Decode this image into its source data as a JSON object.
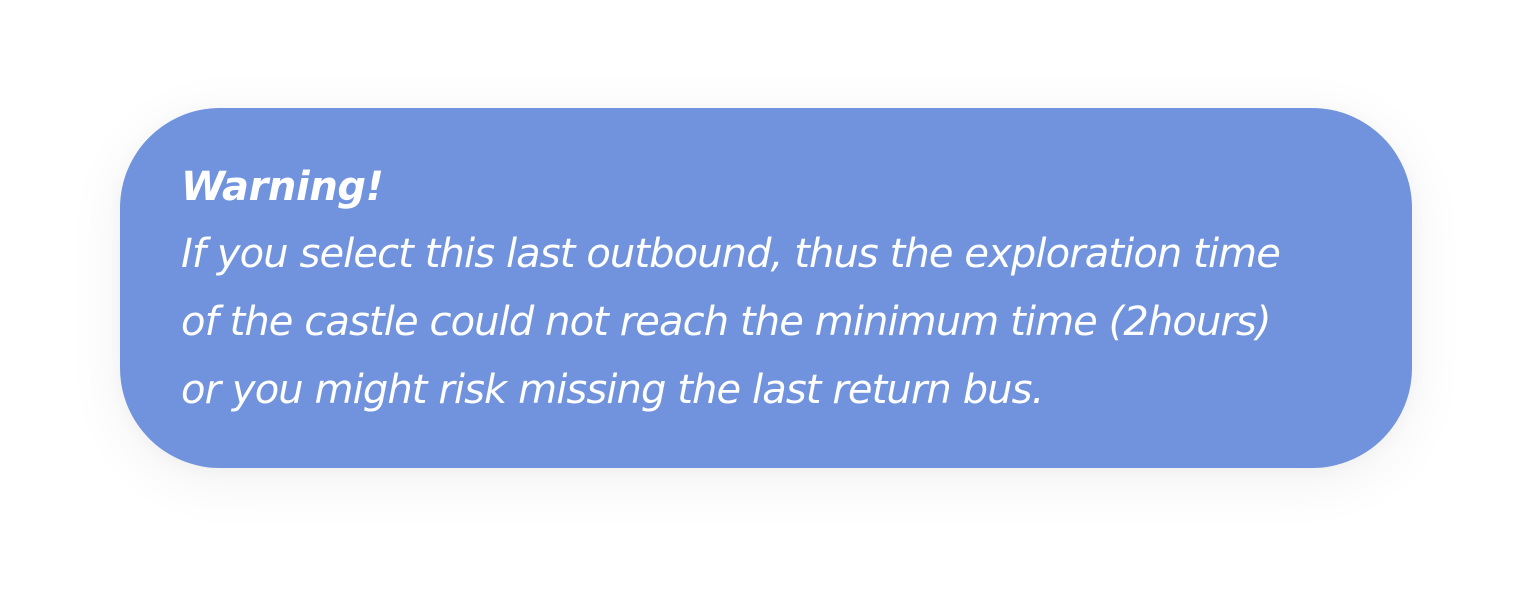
{
  "warning": {
    "title": "Warning!",
    "lines": [
      "If you select this last outbound, thus the exploration time",
      "of the castle could not reach the minimum time (2hours)",
      "or you might risk missing the last return bus."
    ],
    "background_color": "#7193de",
    "text_color": "#ffffff"
  }
}
